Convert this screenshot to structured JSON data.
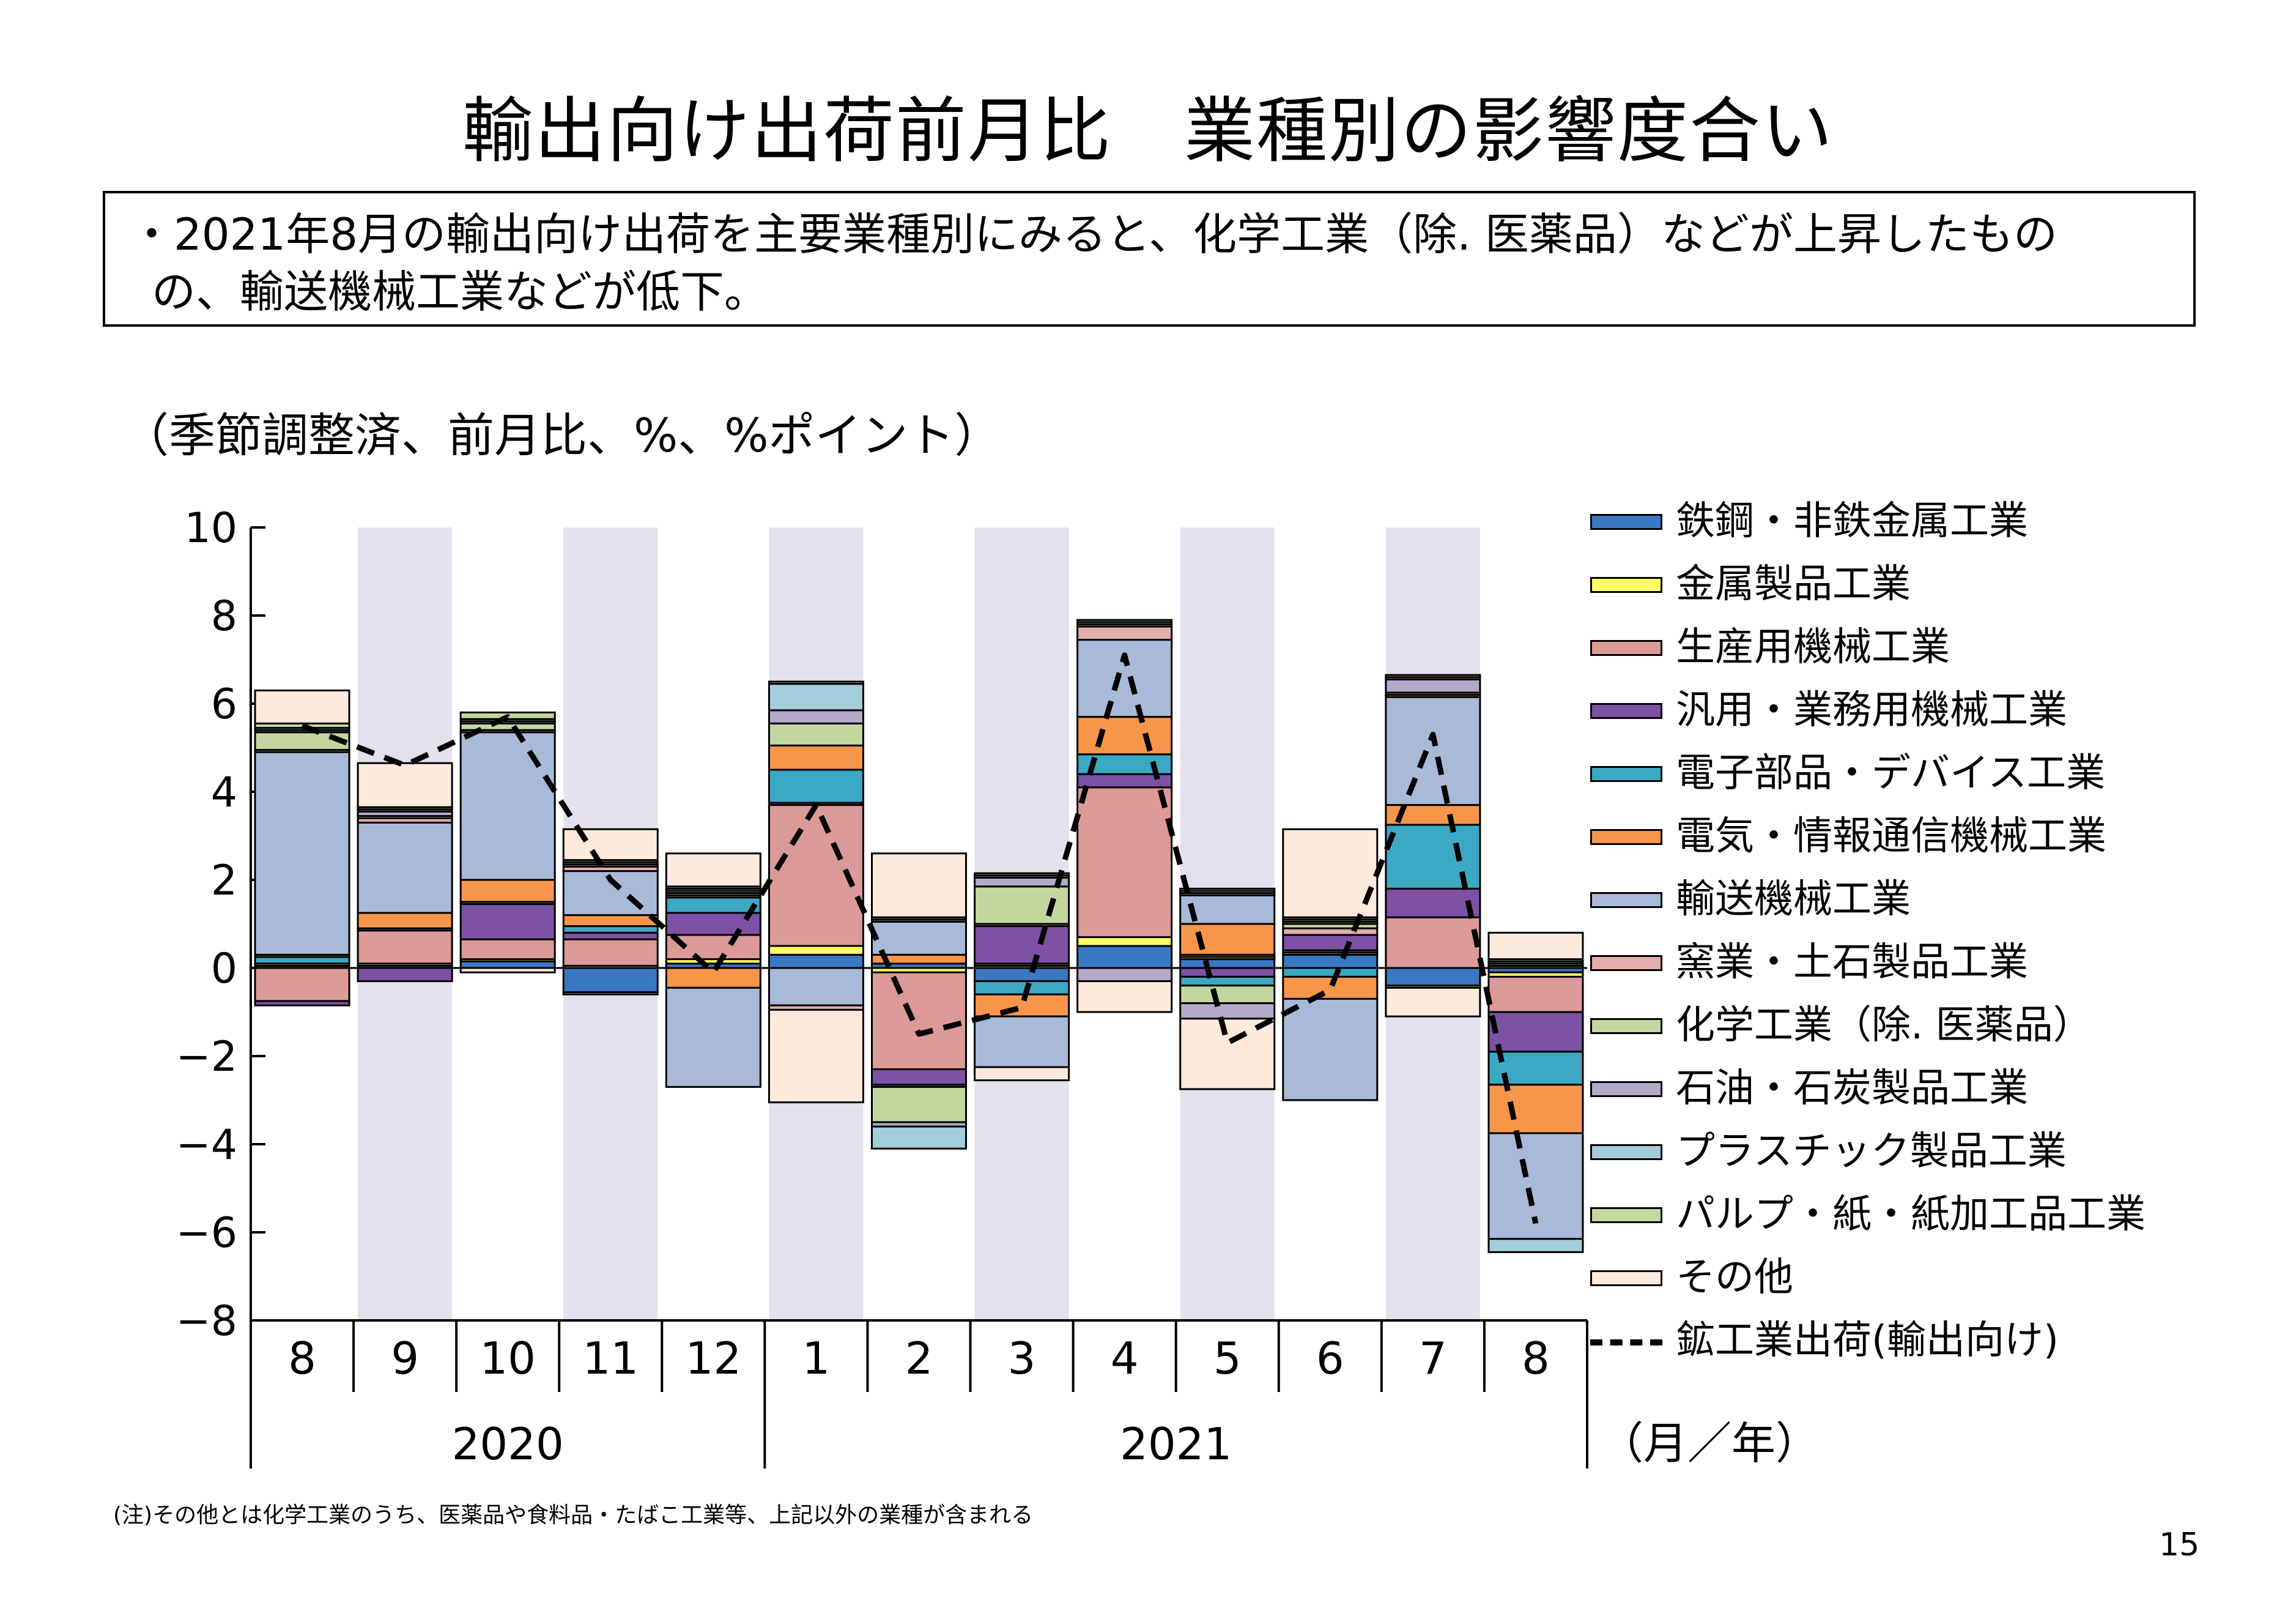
{
  "title": "輸出向け出荷前月比　業種別の影響度合い",
  "summary": {
    "line1": "・2021年8月の輸出向け出荷を主要業種別にみると、化学工業（除.  医薬品）などが上昇したもの",
    "line2": "の、輸送機械工業などが低下。"
  },
  "unit_label": "（季節調整済、前月比、%、%ポイント）",
  "axis_unit_label": "（月／年）",
  "note": "(注)その他とは化学工業のうち、医薬品や食料品・たばこ工業等、上記以外の業種が含まれる",
  "page_number": "15",
  "chart_data": {
    "type": "bar",
    "stacked": true,
    "categories": [
      "8",
      "9",
      "10",
      "11",
      "12",
      "1",
      "2",
      "3",
      "4",
      "5",
      "6",
      "7",
      "8"
    ],
    "year_groups": [
      {
        "label": "2020",
        "from": 0,
        "to": 4
      },
      {
        "label": "2021",
        "from": 5,
        "to": 12
      }
    ],
    "ylim": [
      -8,
      10
    ],
    "yticks": [
      "10",
      "8",
      "6",
      "4",
      "2",
      "0",
      "−2",
      "−4",
      "−6",
      "−8"
    ],
    "shaded_columns": [
      1,
      3,
      5,
      7,
      9,
      11
    ],
    "shade_color": "#e4e0ee",
    "series": [
      {
        "name": "鉄鋼・非鉄金属工業",
        "color": "#3b78c4",
        "values": [
          0.05,
          0.05,
          0.15,
          -0.55,
          0.1,
          0.3,
          0.1,
          -0.3,
          0.5,
          0.2,
          0.3,
          -0.4,
          -0.1
        ]
      },
      {
        "name": "金属製品工業",
        "color": "#ffff66",
        "values": [
          0.05,
          0.05,
          0.05,
          0.05,
          0.1,
          0.2,
          -0.1,
          0.05,
          0.2,
          0.05,
          0.05,
          -0.05,
          -0.1
        ]
      },
      {
        "name": "生産用機械工業",
        "color": "#dc9a99",
        "values": [
          -0.75,
          0.75,
          0.45,
          0.6,
          0.55,
          3.2,
          -2.2,
          0.05,
          3.4,
          0.05,
          0.05,
          1.15,
          -0.8
        ]
      },
      {
        "name": "汎用・業務用機械工業",
        "color": "#7d52a4",
        "values": [
          -0.1,
          -0.3,
          0.8,
          0.15,
          0.5,
          0.05,
          -0.35,
          0.85,
          0.3,
          -0.2,
          0.35,
          0.65,
          -0.9
        ]
      },
      {
        "name": "電子部品・デバイス工業",
        "color": "#3ba9c4",
        "values": [
          0.15,
          0.05,
          0.05,
          0.15,
          0.35,
          0.75,
          -0.05,
          -0.3,
          0.45,
          -0.2,
          -0.2,
          1.45,
          -0.75
        ]
      },
      {
        "name": "電気・情報通信機械工業",
        "color": "#f7964a",
        "values": [
          0.05,
          0.35,
          0.5,
          0.25,
          -0.45,
          0.55,
          0.2,
          -0.5,
          0.85,
          0.7,
          -0.5,
          0.45,
          -1.1
        ]
      },
      {
        "name": "輸送機械工業",
        "color": "#a9b9d8",
        "values": [
          4.6,
          2.05,
          3.35,
          1.0,
          -2.25,
          -0.85,
          0.75,
          -1.15,
          1.75,
          0.65,
          -2.3,
          2.45,
          -2.4
        ]
      },
      {
        "name": "窯業・土石製品工業",
        "color": "#e4aeaa",
        "values": [
          0.05,
          0.1,
          0.05,
          0.1,
          0.05,
          -0.1,
          0.05,
          0.05,
          0.3,
          0.05,
          0.15,
          0.05,
          0.05
        ]
      },
      {
        "name": "化学工業（除.  医薬品）",
        "color": "#c3d6a0",
        "values": [
          0.4,
          0.05,
          0.15,
          0.05,
          0.05,
          0.5,
          -0.8,
          0.85,
          0.05,
          -0.4,
          0.1,
          0.05,
          0.05
        ]
      },
      {
        "name": "石油・石炭製品工業",
        "color": "#b3a9c9",
        "values": [
          0.05,
          0.1,
          0.05,
          -0.05,
          0.05,
          0.3,
          -0.1,
          0.2,
          -0.3,
          -0.35,
          0.05,
          0.3,
          0.05
        ]
      },
      {
        "name": "プラスチック製品工業",
        "color": "#a4cddb",
        "values": [
          0.05,
          0.05,
          0.05,
          0.05,
          0.05,
          0.6,
          -0.5,
          0.05,
          0.05,
          0.05,
          0.05,
          0.05,
          -0.3
        ]
      },
      {
        "name": "パルプ・紙・紙加工品工業",
        "color": "#c4d9a0",
        "values": [
          0.1,
          0.05,
          0.15,
          0.05,
          0.05,
          0.05,
          0.05,
          0.05,
          0.05,
          0.05,
          0.05,
          0.05,
          0.05
        ]
      },
      {
        "name": "その他",
        "color": "#fdeadc",
        "values": [
          0.75,
          1.0,
          -0.1,
          0.7,
          0.75,
          -2.1,
          1.45,
          -0.3,
          -0.7,
          -1.6,
          2.0,
          -0.65,
          0.6
        ]
      }
    ],
    "line_series": {
      "name": "鉱工業出荷(輸出向け)",
      "style": "dashed",
      "color": "#000000",
      "values": [
        5.5,
        4.6,
        5.7,
        2.0,
        -0.1,
        3.7,
        -1.5,
        -0.9,
        7.1,
        -1.7,
        -0.5,
        5.3,
        -5.8
      ]
    }
  }
}
